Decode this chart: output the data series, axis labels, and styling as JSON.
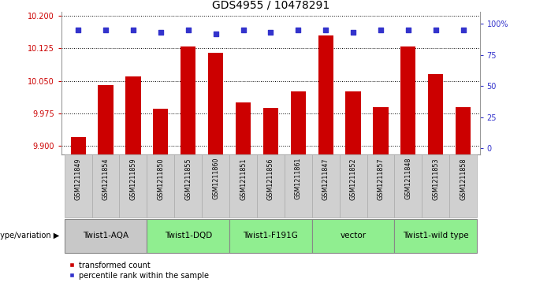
{
  "title": "GDS4955 / 10478291",
  "samples": [
    "GSM1211849",
    "GSM1211854",
    "GSM1211859",
    "GSM1211850",
    "GSM1211855",
    "GSM1211860",
    "GSM1211851",
    "GSM1211856",
    "GSM1211861",
    "GSM1211847",
    "GSM1211852",
    "GSM1211857",
    "GSM1211848",
    "GSM1211853",
    "GSM1211858"
  ],
  "bar_values": [
    9.92,
    10.04,
    10.06,
    9.985,
    10.13,
    10.115,
    10.0,
    9.988,
    10.025,
    10.155,
    10.025,
    9.99,
    10.13,
    10.065,
    9.99
  ],
  "percentile_values": [
    95,
    95,
    95,
    93,
    95,
    92,
    95,
    93,
    95,
    95,
    93,
    95,
    95,
    95,
    95
  ],
  "bar_color": "#cc0000",
  "percentile_color": "#3333cc",
  "ylim_left": [
    9.88,
    10.21
  ],
  "yticks_left": [
    9.9,
    9.975,
    10.05,
    10.125,
    10.2
  ],
  "ylim_right": [
    -5,
    110
  ],
  "yticks_right": [
    0,
    25,
    50,
    75,
    100
  ],
  "ytick_labels_right": [
    "0",
    "25",
    "50",
    "75",
    "100%"
  ],
  "groups": [
    {
      "label": "Twist1-AQA",
      "start": 0,
      "end": 3,
      "color": "#c8c8c8"
    },
    {
      "label": "Twist1-DQD",
      "start": 3,
      "end": 6,
      "color": "#90ee90"
    },
    {
      "label": "Twist1-F191G",
      "start": 6,
      "end": 9,
      "color": "#90ee90"
    },
    {
      "label": "vector",
      "start": 9,
      "end": 12,
      "color": "#90ee90"
    },
    {
      "label": "Twist1-wild type",
      "start": 12,
      "end": 15,
      "color": "#90ee90"
    }
  ],
  "left_label": "genotype/variation",
  "legend_items": [
    {
      "color": "#cc0000",
      "label": "transformed count"
    },
    {
      "color": "#3333cc",
      "label": "percentile rank within the sample"
    }
  ],
  "background_color": "#ffffff",
  "plot_bg_color": "#ffffff",
  "tick_color_left": "#cc0000",
  "tick_color_right": "#3333cc",
  "sample_box_color": "#d0d0d0",
  "grid_color": "#000000"
}
